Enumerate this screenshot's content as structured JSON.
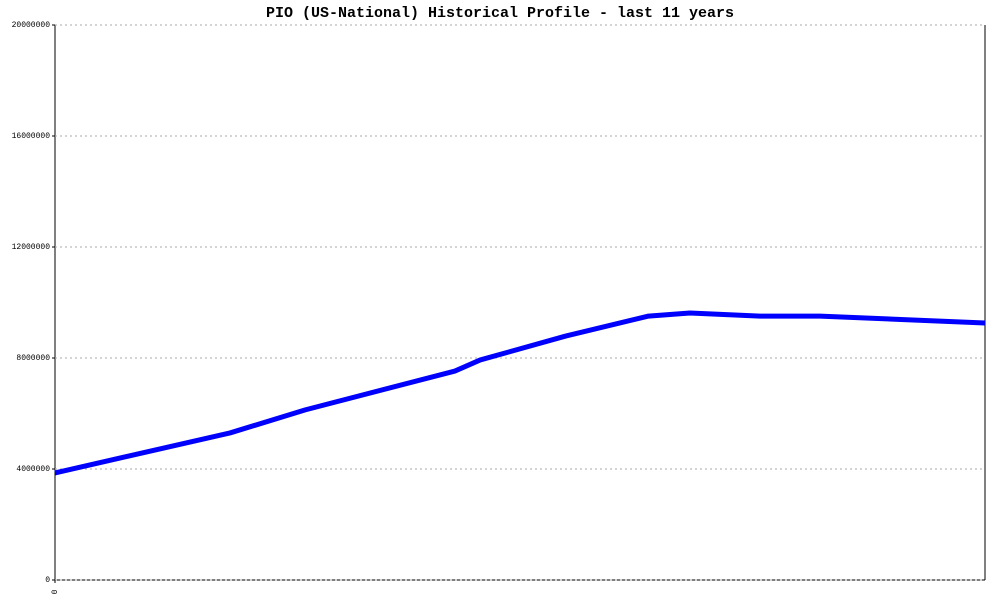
{
  "chart_data": {
    "type": "line",
    "title": "PIO (US-National) Historical Profile - last 11 years",
    "x": [
      0,
      2.07,
      2.96,
      4.73,
      5.03,
      6.04,
      7.02,
      7.51,
      8.34,
      9.05,
      11
    ],
    "series": [
      {
        "name": "PIO",
        "color": "#0000ff",
        "values": [
          3860000,
          5300000,
          6130000,
          7530000,
          7930000,
          8790000,
          9510000,
          9620000,
          9510000,
          9510000,
          9260000
        ]
      }
    ],
    "xlim": [
      0,
      11
    ],
    "xticks": [
      0
    ],
    "ylim": [
      0,
      20000000
    ],
    "yticks": [
      0,
      4000000,
      8000000,
      12000000,
      16000000,
      20000000
    ],
    "grid": true
  }
}
